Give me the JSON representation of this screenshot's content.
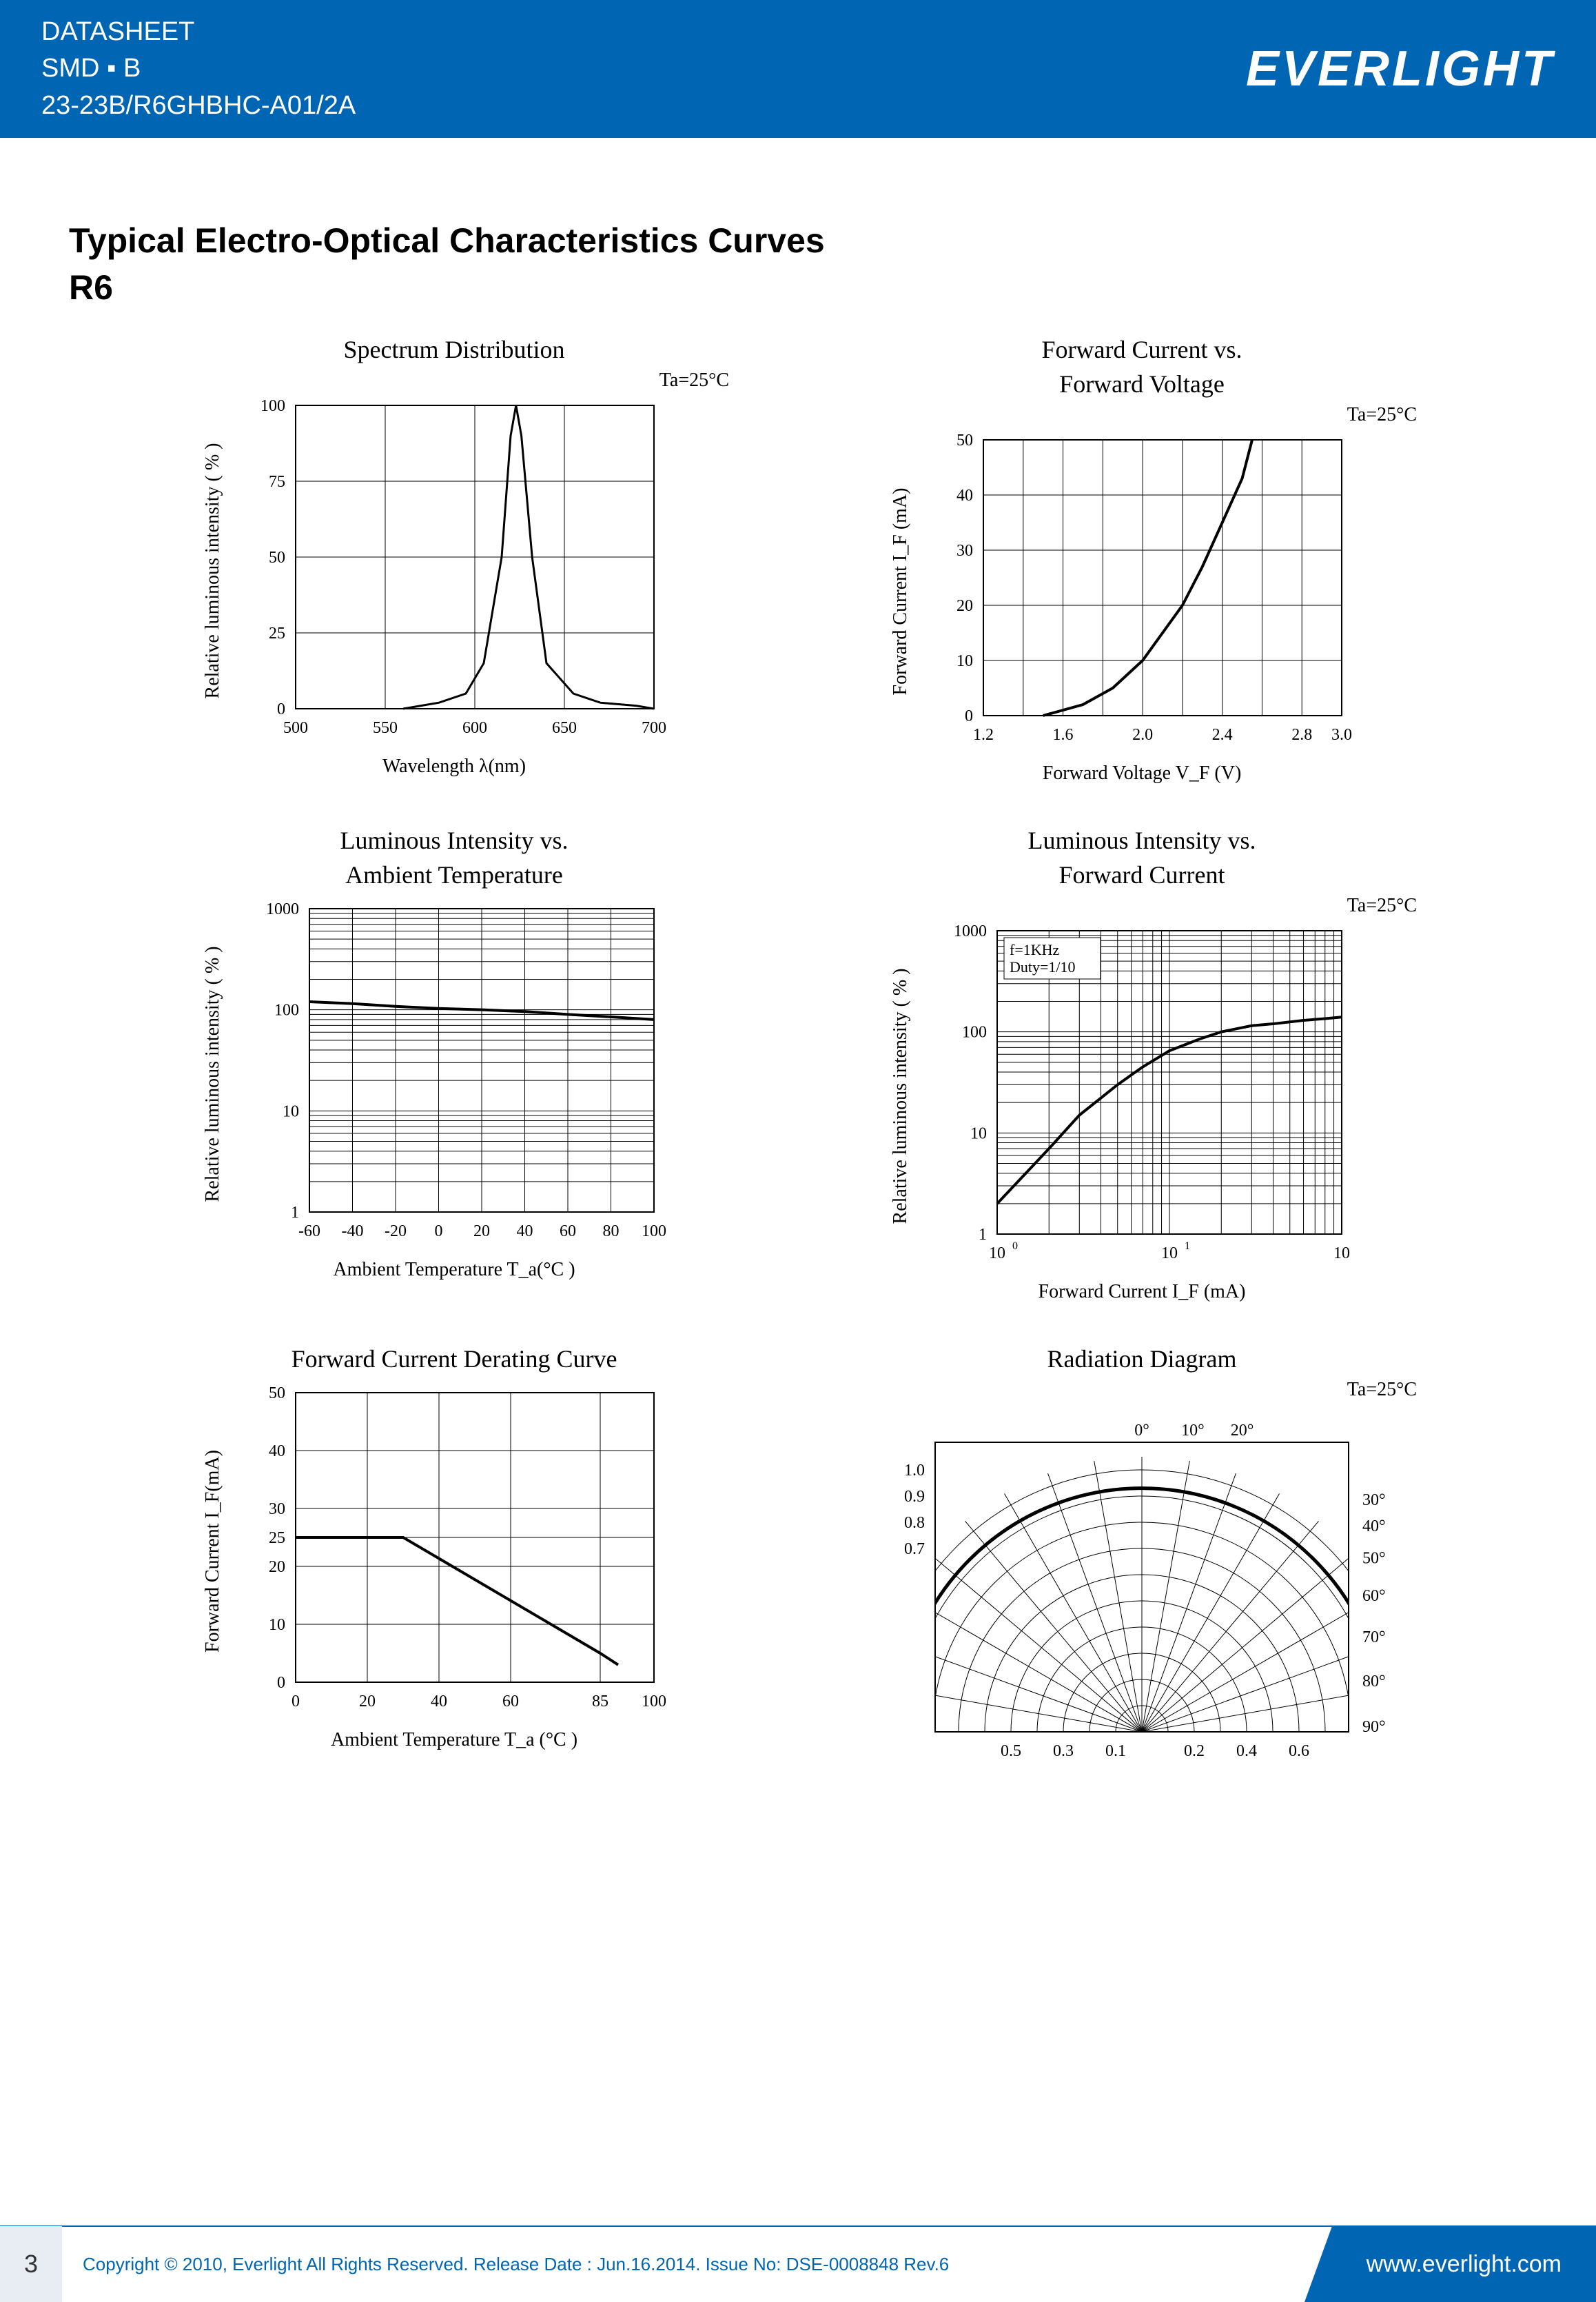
{
  "header": {
    "line1": "DATASHEET",
    "line2": "SMD ▪ B",
    "line3": "23-23B/R6GHBHC-A01/2A",
    "brand": "EVERLIGHT"
  },
  "title": "Typical Electro-Optical Characteristics Curves",
  "subtitle": "R6",
  "colors": {
    "header_bg": "#0066b3",
    "text": "#000000",
    "grid": "#000000",
    "curve": "#000000"
  },
  "chart1": {
    "title": "Spectrum Distribution",
    "annot": "Ta=25°C",
    "xlabel": "Wavelength λ(nm)",
    "ylabel": "Relative luminous intensity ( % )",
    "xlim": [
      500,
      700
    ],
    "xtick_step": 50,
    "ylim": [
      0,
      100
    ],
    "ytick_step": 25,
    "type": "line",
    "curve": [
      [
        560,
        0
      ],
      [
        580,
        2
      ],
      [
        595,
        5
      ],
      [
        605,
        15
      ],
      [
        615,
        50
      ],
      [
        620,
        90
      ],
      [
        623,
        100
      ],
      [
        626,
        90
      ],
      [
        632,
        50
      ],
      [
        640,
        15
      ],
      [
        655,
        5
      ],
      [
        670,
        2
      ],
      [
        690,
        1
      ],
      [
        700,
        0
      ]
    ]
  },
  "chart2": {
    "title1": "Forward Current vs.",
    "title2": "Forward Voltage",
    "annot": "Ta=25°C",
    "xlabel": "Forward Voltage  V_F (V)",
    "ylabel": "Forward Current    I_F (mA)",
    "xlim": [
      1.2,
      3.0
    ],
    "xticks": [
      1.2,
      1.6,
      2.0,
      2.4,
      2.8,
      3.0
    ],
    "ylim": [
      0,
      50
    ],
    "ytick_step": 10,
    "type": "line",
    "curve": [
      [
        1.5,
        0
      ],
      [
        1.7,
        2
      ],
      [
        1.85,
        5
      ],
      [
        2.0,
        10
      ],
      [
        2.1,
        15
      ],
      [
        2.2,
        20
      ],
      [
        2.3,
        27
      ],
      [
        2.4,
        35
      ],
      [
        2.5,
        43
      ],
      [
        2.55,
        50
      ]
    ]
  },
  "chart3": {
    "title1": "Luminous Intensity vs.",
    "title2": "Ambient Temperature",
    "xlabel": "Ambient Temperature T_a(°C )",
    "ylabel": "Relative luminous intensity  ( % )",
    "xlim": [
      -60,
      100
    ],
    "xticks": [
      -60,
      -40,
      -20,
      0,
      20,
      40,
      60,
      80,
      100
    ],
    "ylim_log": [
      1,
      1000
    ],
    "type": "line-semilogy",
    "curve": [
      [
        -60,
        120
      ],
      [
        -40,
        115
      ],
      [
        -20,
        108
      ],
      [
        0,
        103
      ],
      [
        20,
        100
      ],
      [
        40,
        96
      ],
      [
        60,
        90
      ],
      [
        80,
        85
      ],
      [
        100,
        80
      ]
    ]
  },
  "chart4": {
    "title1": "Luminous Intensity vs.",
    "title2": "Forward Current",
    "annot": "Ta=25°C",
    "legend1": "f=1KHz",
    "legend2": "Duty=1/10",
    "xlabel": "Forward Current   I_F (mA)",
    "ylabel": "Relative luminous intensity ( % )",
    "xlim_log": [
      1,
      100
    ],
    "ylim_log": [
      1,
      1000
    ],
    "type": "line-loglog",
    "curve": [
      [
        1,
        2
      ],
      [
        2,
        7
      ],
      [
        3,
        15
      ],
      [
        5,
        30
      ],
      [
        7,
        45
      ],
      [
        10,
        65
      ],
      [
        15,
        85
      ],
      [
        20,
        100
      ],
      [
        30,
        115
      ],
      [
        40,
        120
      ],
      [
        60,
        130
      ],
      [
        80,
        135
      ],
      [
        100,
        140
      ]
    ]
  },
  "chart5": {
    "title": "Forward Current Derating Curve",
    "xlabel": "Ambient Temperature T_a (°C )",
    "ylabel": "Forward Current   I_F(mA)",
    "xlim": [
      0,
      100
    ],
    "xticks": [
      0,
      20,
      40,
      60,
      85,
      100
    ],
    "ylim": [
      0,
      50
    ],
    "ytick_step": 10,
    "extra_ytick": 25,
    "type": "line",
    "curve": [
      [
        0,
        25
      ],
      [
        30,
        25
      ],
      [
        85,
        5
      ],
      [
        90,
        3
      ]
    ]
  },
  "chart6": {
    "title": "Radiation Diagram",
    "annot": "Ta=25°C",
    "type": "polar",
    "angle_labels": [
      "0°",
      "10°",
      "20°",
      "30°",
      "40°",
      "50°",
      "60°",
      "70°",
      "80°",
      "90°"
    ],
    "radial_labels_left": [
      "1.0",
      "0.9",
      "0.8",
      "0.7"
    ],
    "radial_labels_bottom": [
      "0.5",
      "0.3",
      "0.1",
      "0.2",
      "0.4",
      "0.6"
    ],
    "boundary_radius": 0.93
  },
  "footer": {
    "page": "3",
    "text": "Copyright © 2010, Everlight All Rights Reserved. Release Date : Jun.16.2014. Issue No: DSE-0008848    Rev.6",
    "url": "www.everlight.com"
  }
}
